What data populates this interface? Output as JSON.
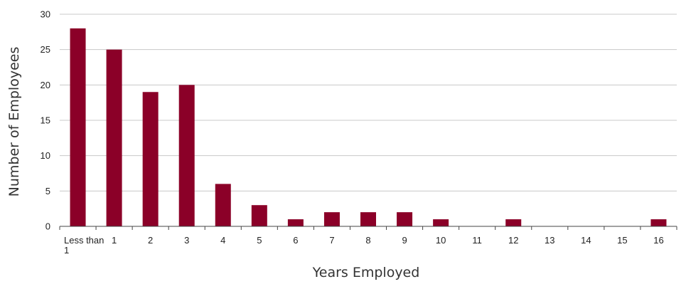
{
  "chart_data": {
    "type": "bar",
    "categories": [
      "Less than 1",
      "1",
      "2",
      "3",
      "4",
      "5",
      "6",
      "7",
      "8",
      "9",
      "10",
      "11",
      "12",
      "13",
      "14",
      "15",
      "16"
    ],
    "values": [
      28,
      25,
      19,
      20,
      6,
      3,
      1,
      2,
      2,
      2,
      1,
      0,
      1,
      0,
      0,
      0,
      1
    ],
    "title": "",
    "xlabel": "Years Employed",
    "ylabel": "Number of Employees",
    "ylim": [
      0,
      30
    ],
    "yticks": [
      0,
      5,
      10,
      15,
      20,
      25,
      30
    ],
    "grid": true,
    "bar_color": "#8b0028",
    "grid_color": "#c8c8c8"
  }
}
